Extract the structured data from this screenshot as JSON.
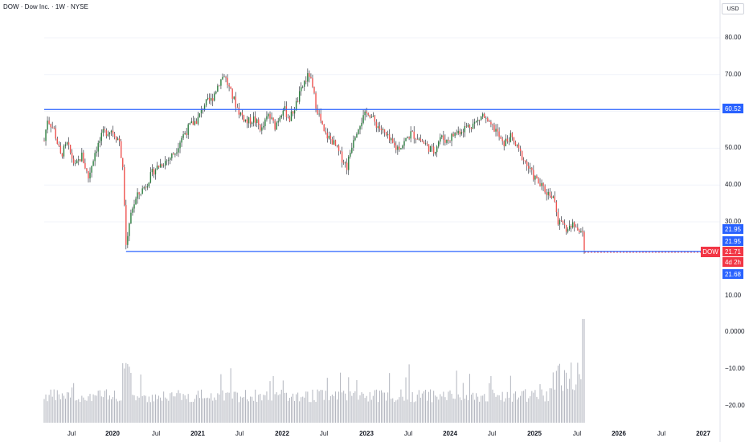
{
  "header": {
    "title": "DOW · Dow Inc. · 1W · NYSE",
    "currency": "USD"
  },
  "y_axis": {
    "labels": [
      "80.00",
      "70.00",
      "60.00",
      "50.00",
      "40.00",
      "30.00",
      "10.00",
      "0.0000",
      "−10.00",
      "−20.00"
    ]
  },
  "x_axis": {
    "labels": [
      "Jul",
      "2020",
      "Jul",
      "2021",
      "Jul",
      "2022",
      "Jul",
      "2023",
      "Jul",
      "2024",
      "Jul",
      "2025",
      "Jul",
      "2026",
      "Jul",
      "2027"
    ]
  },
  "price_tags": {
    "upper_line": "60.52",
    "high_a": "21.95",
    "high_b": "21.95",
    "symbol": "DOW",
    "last": "21.71",
    "countdown": "4d 2h",
    "low": "21.68"
  },
  "colors": {
    "up": "#26a69a",
    "down": "#ef5350",
    "candle": "#131722",
    "line": "#2962ff",
    "volume": "#b2b5be",
    "last_price": "#f23645"
  },
  "chart_data": {
    "type": "candlestick",
    "interval": "1W",
    "x_range": [
      "2019-04-01",
      "2027-03-01"
    ],
    "ylim": [
      20,
      80
    ],
    "horizontal_lines": [
      {
        "value": 60.52,
        "from": "2019-04-01",
        "to": "2027-03-01"
      },
      {
        "value": 21.95,
        "from": "2020-03-16",
        "to": "2027-03-01"
      }
    ],
    "close_series": {
      "dates": [
        "2019-04-01",
        "2019-04-15",
        "2019-05-13",
        "2019-06-10",
        "2019-07-08",
        "2019-08-12",
        "2019-09-09",
        "2019-10-07",
        "2019-11-04",
        "2019-12-09",
        "2020-01-13",
        "2020-02-17",
        "2020-03-02",
        "2020-03-16",
        "2020-04-06",
        "2020-05-04",
        "2020-06-08",
        "2020-07-13",
        "2020-08-17",
        "2020-09-14",
        "2020-10-12",
        "2020-11-09",
        "2020-12-14",
        "2021-01-18",
        "2021-02-15",
        "2021-03-15",
        "2021-04-19",
        "2021-05-10",
        "2021-06-07",
        "2021-07-12",
        "2021-08-16",
        "2021-09-13",
        "2021-10-18",
        "2021-11-15",
        "2021-12-13",
        "2022-01-17",
        "2022-02-14",
        "2022-03-14",
        "2022-04-18",
        "2022-05-09",
        "2022-06-06",
        "2022-07-11",
        "2022-08-15",
        "2022-09-19",
        "2022-10-17",
        "2022-11-14",
        "2022-12-12",
        "2023-01-16",
        "2023-02-13",
        "2023-03-13",
        "2023-04-17",
        "2023-05-15",
        "2023-06-12",
        "2023-07-17",
        "2023-08-14",
        "2023-09-18",
        "2023-10-23",
        "2023-11-20",
        "2023-12-18",
        "2024-01-22",
        "2024-02-19",
        "2024-03-18",
        "2024-04-22",
        "2024-05-20",
        "2024-06-17",
        "2024-07-15",
        "2024-08-12",
        "2024-09-16",
        "2024-10-14",
        "2024-11-11",
        "2024-12-16",
        "2025-01-20",
        "2025-02-17",
        "2025-03-17",
        "2025-04-07",
        "2025-05-12",
        "2025-06-09",
        "2025-07-07",
        "2025-07-21",
        "2025-07-28"
      ],
      "values": [
        52,
        58,
        55,
        48,
        51,
        45,
        48,
        42,
        49,
        54,
        55,
        52,
        44,
        24,
        33,
        37,
        40,
        44,
        46,
        47,
        49,
        53,
        56,
        58,
        62,
        63,
        68,
        70,
        65,
        60,
        57,
        58,
        55,
        59,
        56,
        61,
        58,
        62,
        68,
        70,
        62,
        54,
        52,
        48,
        45,
        53,
        57,
        60,
        57,
        55,
        52,
        50,
        51,
        54,
        53,
        51,
        49,
        53,
        52,
        54,
        55,
        56,
        57,
        59,
        56,
        55,
        51,
        53,
        50,
        47,
        43,
        40,
        38,
        37,
        30,
        28,
        29,
        28,
        27,
        21.71
      ]
    },
    "volume_y_range": [
      -24,
      2
    ]
  }
}
